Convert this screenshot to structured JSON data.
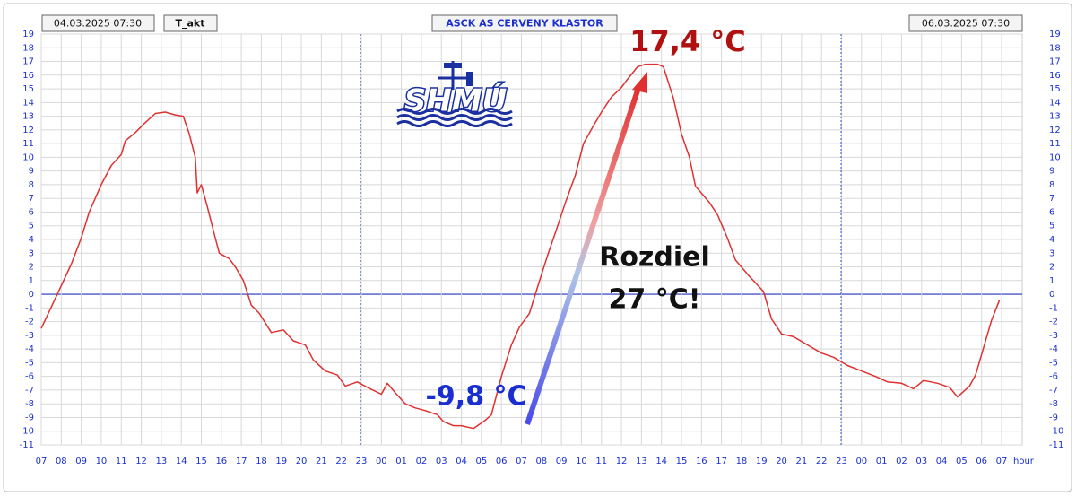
{
  "chart_data": {
    "type": "line",
    "title": "ASCK AS CERVENY KLASTOR",
    "start_label": "04.03.2025 07:30",
    "end_label": "06.03.2025 07:30",
    "logo": "SHMÚ",
    "x_label": "hour",
    "annotations": [
      "17,4 °C",
      "-9,8 °C",
      "Rozdiel",
      "27 °C!"
    ],
    "grid": true,
    "xlim": [
      0,
      48
    ],
    "xticks": [
      {
        "value": 0,
        "label": "07"
      },
      {
        "value": 1,
        "label": "08"
      },
      {
        "value": 2,
        "label": "09"
      },
      {
        "value": 3,
        "label": "10"
      },
      {
        "value": 4,
        "label": "11"
      },
      {
        "value": 5,
        "label": "12"
      },
      {
        "value": 6,
        "label": "13"
      },
      {
        "value": 7,
        "label": "14"
      },
      {
        "value": 8,
        "label": "15"
      },
      {
        "value": 9,
        "label": "16"
      },
      {
        "value": 10,
        "label": "17"
      },
      {
        "value": 11,
        "label": "18"
      },
      {
        "value": 12,
        "label": "19"
      },
      {
        "value": 13,
        "label": "20"
      },
      {
        "value": 14,
        "label": "21"
      },
      {
        "value": 15,
        "label": "22"
      },
      {
        "value": 16,
        "label": "23"
      },
      {
        "value": 17,
        "label": "00"
      },
      {
        "value": 18,
        "label": "01"
      },
      {
        "value": 19,
        "label": "02"
      },
      {
        "value": 20,
        "label": "03"
      },
      {
        "value": 21,
        "label": "04"
      },
      {
        "value": 22,
        "label": "05"
      },
      {
        "value": 23,
        "label": "06"
      },
      {
        "value": 24,
        "label": "07"
      },
      {
        "value": 25,
        "label": "08"
      },
      {
        "value": 26,
        "label": "09"
      },
      {
        "value": 27,
        "label": "10"
      },
      {
        "value": 28,
        "label": "11"
      },
      {
        "value": 29,
        "label": "12"
      },
      {
        "value": 30,
        "label": "13"
      },
      {
        "value": 31,
        "label": "14"
      },
      {
        "value": 32,
        "label": "15"
      },
      {
        "value": 33,
        "label": "16"
      },
      {
        "value": 34,
        "label": "17"
      },
      {
        "value": 35,
        "label": "18"
      },
      {
        "value": 36,
        "label": "19"
      },
      {
        "value": 37,
        "label": "20"
      },
      {
        "value": 38,
        "label": "21"
      },
      {
        "value": 39,
        "label": "22"
      },
      {
        "value": 40,
        "label": "23"
      },
      {
        "value": 41,
        "label": "00"
      },
      {
        "value": 42,
        "label": "01"
      },
      {
        "value": 43,
        "label": "02"
      },
      {
        "value": 44,
        "label": "03"
      },
      {
        "value": 45,
        "label": "04"
      },
      {
        "value": 46,
        "label": "05"
      },
      {
        "value": 47,
        "label": "06"
      },
      {
        "value": 48,
        "label": "07"
      }
    ],
    "ylim": [
      -11,
      19
    ],
    "yticks": [
      -11,
      -10,
      -9,
      -8,
      -7,
      -6,
      -5,
      -4,
      -3,
      -2,
      -1,
      0,
      1,
      2,
      3,
      4,
      5,
      6,
      7,
      8,
      9,
      10,
      11,
      12,
      13,
      14,
      15,
      16,
      17,
      18,
      19
    ],
    "series": [
      {
        "name": "T_akt",
        "color": "#e03030",
        "x": [
          0,
          0.8,
          1.5,
          2.0,
          2.4,
          3.0,
          3.5,
          4.0,
          4.2,
          4.7,
          5.1,
          5.7,
          6.2,
          6.7,
          7.1,
          7.4,
          7.7,
          7.8,
          8.0,
          8.3,
          8.7,
          8.9,
          9.4,
          9.7,
          10.1,
          10.5,
          10.9,
          11.5,
          12.1,
          12.6,
          13.2,
          13.6,
          14.2,
          14.8,
          15.2,
          15.8,
          16.3,
          17.0,
          17.3,
          17.7,
          18.2,
          18.7,
          19.2,
          19.8,
          20.1,
          20.6,
          21.0,
          21.6,
          22.2,
          22.5,
          23.0,
          23.5,
          23.9,
          24.4,
          24.8,
          25.3,
          25.7,
          26.2,
          26.7,
          27.1,
          27.6,
          28.0,
          28.5,
          29.0,
          29.3,
          29.8,
          30.2,
          30.8,
          31.1,
          31.6,
          32.0,
          32.4,
          32.7,
          33.4,
          33.8,
          34.3,
          34.7,
          35.4,
          36.1,
          36.5,
          37.0,
          37.6,
          38.3,
          39.0,
          39.6,
          40.3,
          41.0,
          41.7,
          42.3,
          43.0,
          43.6,
          44.1,
          44.8,
          45.4,
          45.8,
          46.4,
          46.7,
          47.0,
          47.5,
          47.9
        ],
        "values": [
          -2.5,
          0,
          2.2,
          4.1,
          6,
          8,
          9.4,
          10.2,
          11.2,
          11.8,
          12.4,
          13.2,
          13.3,
          13.1,
          13.0,
          11.7,
          10,
          7.4,
          8,
          6.4,
          4.1,
          3,
          2.6,
          2,
          1.0,
          -0.8,
          -1.4,
          -2.8,
          -2.6,
          -3.4,
          -3.7,
          -4.8,
          -5.6,
          -5.9,
          -6.7,
          -6.4,
          -6.8,
          -7.3,
          -6.5,
          -7.2,
          -8.0,
          -8.3,
          -8.5,
          -8.8,
          -9.3,
          -9.6,
          -9.6,
          -9.8,
          -9.2,
          -8.8,
          -6,
          -3.7,
          -2.4,
          -1.4,
          0.5,
          2.8,
          4.5,
          6.7,
          8.7,
          11,
          12.3,
          13.3,
          14.4,
          15.1,
          15.7,
          16.6,
          16.8,
          16.8,
          16.6,
          14.3,
          11.7,
          10,
          7.9,
          6.7,
          5.8,
          4.1,
          2.5,
          1.3,
          0.2,
          -1.8,
          -2.9,
          -3.1,
          -3.7,
          -4.3,
          -4.6,
          -5.2,
          -5.6,
          -6.0,
          -6.4,
          -6.5,
          -6.9,
          -6.3,
          -6.5,
          -6.8,
          -7.5,
          -6.7,
          -5.9,
          -4.4,
          -1.9,
          -0.4
        ]
      }
    ]
  }
}
